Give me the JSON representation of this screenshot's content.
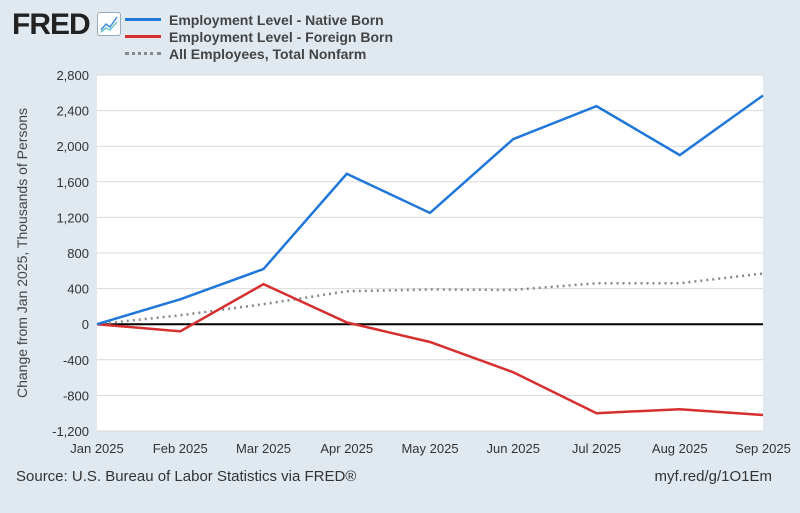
{
  "header": {
    "logo": "FRED",
    "logo_icon": "line-chart-icon"
  },
  "footer": {
    "source": "Source: U.S. Bureau of Labor Statistics via FRED®",
    "url": "myf.red/g/1O1Em"
  },
  "chart_data": {
    "type": "line",
    "title": "",
    "xlabel": "",
    "ylabel": "Change from Jan 2025, Thousands of Persons",
    "categories": [
      "Jan 2025",
      "Feb 2025",
      "Mar 2025",
      "Apr 2025",
      "May 2025",
      "Jun 2025",
      "Jul 2025",
      "Aug 2025",
      "Sep 2025"
    ],
    "ylim": [
      -1200,
      2800
    ],
    "yticks": [
      "-1,200",
      "-800",
      "-400",
      "0",
      "400",
      "800",
      "1,200",
      "1,600",
      "2,000",
      "2,400",
      "2,800"
    ],
    "grid": true,
    "legend": "top",
    "series": [
      {
        "name": "Employment Level - Native Born",
        "color": "#1f77d9",
        "style": "solid",
        "values": [
          0,
          280,
          620,
          1690,
          1250,
          2080,
          2450,
          1900,
          2570
        ]
      },
      {
        "name": "Employment Level - Foreign Born",
        "color": "#d62f2f",
        "style": "solid",
        "values": [
          0,
          -80,
          450,
          20,
          -200,
          -540,
          -1000,
          -955,
          -1020
        ]
      },
      {
        "name": "All Employees, Total Nonfarm",
        "color": "#888888",
        "style": "dotted",
        "values": [
          0,
          100,
          225,
          370,
          390,
          385,
          460,
          460,
          570
        ]
      }
    ]
  }
}
